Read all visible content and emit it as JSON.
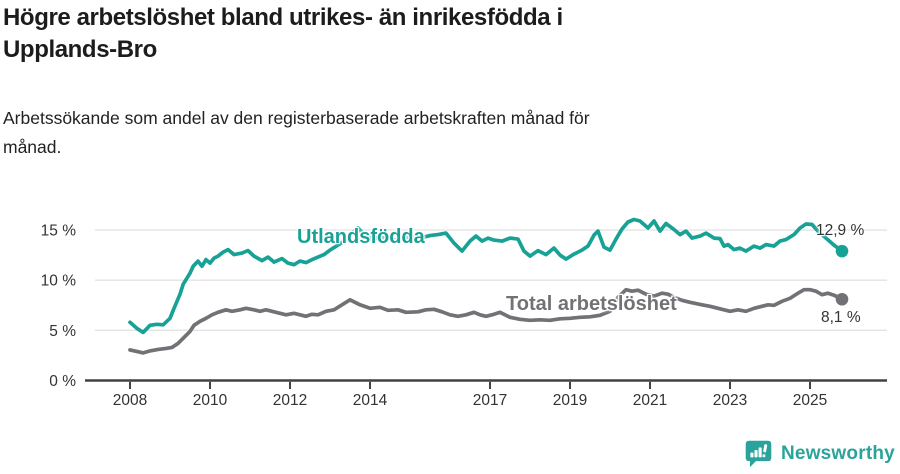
{
  "page": {
    "title": "Högre arbetslöshet bland utrikes- än inrikesfödda i Upplands-Bro",
    "title_lines": [
      "Högre arbetslöshet bland utrikes- än inrikesfödda i",
      "Upplands-Bro"
    ],
    "subtitle": "Arbetssökande som andel av den registerbaserade arbetskraften månad för månad.",
    "subtitle_lines": [
      "Arbetssökande som andel av den registerbaserade arbetskraften månad för",
      "månad."
    ]
  },
  "footer": {
    "brand": "Newsworthy"
  },
  "colors": {
    "foreign_born_line": "#18a296",
    "total_line": "#727176",
    "grid": "#e3e3e3",
    "axis": "#424242",
    "tick_text": "#333333",
    "value_text": "#333333",
    "brand": "#2aa49b"
  },
  "chart_data": {
    "type": "line",
    "title": "Högre arbetslöshet bland utrikes- än inrikesfödda i Upplands-Bro",
    "subtitle": "Arbetssökande som andel av den registerbaserade arbetskraften månad för månad.",
    "unit": "%",
    "grid": true,
    "legend_position": "inline-labels",
    "x_axis": {
      "label": "",
      "range": [
        2008,
        2025.8
      ],
      "tick_values": [
        2008,
        2010,
        2012,
        2014,
        2017,
        2019,
        2021,
        2023,
        2025
      ],
      "tick_labels": [
        "2008",
        "2010",
        "2012",
        "2014",
        "2017",
        "2019",
        "2021",
        "2023",
        "2025"
      ]
    },
    "y_axis": {
      "label": "",
      "range": [
        0,
        16.5
      ],
      "tick_values": [
        0,
        5,
        10,
        15
      ],
      "tick_labels": [
        "0 %",
        "5 %",
        "10 %",
        "15 %"
      ]
    },
    "series": [
      {
        "name": "Utlandsfödda",
        "color": "#18a296",
        "end_label": "12,9 %",
        "end_value": 12.9,
        "points": [
          [
            2008.0,
            5.8
          ],
          [
            2008.17,
            5.2
          ],
          [
            2008.33,
            4.8
          ],
          [
            2008.5,
            5.5
          ],
          [
            2008.67,
            5.6
          ],
          [
            2008.83,
            5.55
          ],
          [
            2009.0,
            6.2
          ],
          [
            2009.08,
            7.0
          ],
          [
            2009.25,
            8.6
          ],
          [
            2009.33,
            9.6
          ],
          [
            2009.5,
            10.7
          ],
          [
            2009.58,
            11.4
          ],
          [
            2009.7,
            11.9
          ],
          [
            2009.8,
            11.4
          ],
          [
            2009.9,
            12.05
          ],
          [
            2010.0,
            11.7
          ],
          [
            2010.1,
            12.2
          ],
          [
            2010.2,
            12.4
          ],
          [
            2010.33,
            12.8
          ],
          [
            2010.45,
            13.05
          ],
          [
            2010.6,
            12.55
          ],
          [
            2010.8,
            12.7
          ],
          [
            2010.95,
            12.95
          ],
          [
            2011.1,
            12.4
          ],
          [
            2011.3,
            11.95
          ],
          [
            2011.45,
            12.3
          ],
          [
            2011.6,
            11.8
          ],
          [
            2011.8,
            12.15
          ],
          [
            2011.95,
            11.7
          ],
          [
            2012.1,
            11.55
          ],
          [
            2012.25,
            11.9
          ],
          [
            2012.4,
            11.75
          ],
          [
            2012.55,
            12.05
          ],
          [
            2012.7,
            12.3
          ],
          [
            2012.85,
            12.55
          ],
          [
            2013.0,
            13.0
          ],
          [
            2013.2,
            13.5
          ],
          [
            2013.35,
            13.9
          ],
          [
            2013.5,
            14.5
          ],
          [
            2013.7,
            15.2
          ],
          [
            2013.85,
            14.55
          ],
          [
            2014.05,
            14.1
          ],
          [
            2014.25,
            14.3
          ],
          [
            2014.45,
            14.15
          ],
          [
            2014.65,
            14.0
          ],
          [
            2014.85,
            14.2
          ],
          [
            2015.05,
            14.3
          ],
          [
            2015.25,
            14.2
          ],
          [
            2015.5,
            14.45
          ],
          [
            2015.7,
            14.55
          ],
          [
            2015.9,
            14.7
          ],
          [
            2016.1,
            13.7
          ],
          [
            2016.3,
            12.9
          ],
          [
            2016.5,
            13.9
          ],
          [
            2016.65,
            14.4
          ],
          [
            2016.8,
            13.9
          ],
          [
            2016.95,
            14.2
          ],
          [
            2017.1,
            14.0
          ],
          [
            2017.3,
            13.9
          ],
          [
            2017.5,
            14.2
          ],
          [
            2017.7,
            14.1
          ],
          [
            2017.85,
            12.9
          ],
          [
            2018.0,
            12.4
          ],
          [
            2018.2,
            12.95
          ],
          [
            2018.4,
            12.55
          ],
          [
            2018.6,
            13.2
          ],
          [
            2018.75,
            12.5
          ],
          [
            2018.9,
            12.1
          ],
          [
            2019.1,
            12.6
          ],
          [
            2019.3,
            13.0
          ],
          [
            2019.45,
            13.4
          ],
          [
            2019.6,
            14.5
          ],
          [
            2019.7,
            14.9
          ],
          [
            2019.85,
            13.3
          ],
          [
            2020.0,
            13.0
          ],
          [
            2020.15,
            14.1
          ],
          [
            2020.3,
            15.1
          ],
          [
            2020.45,
            15.8
          ],
          [
            2020.6,
            16.05
          ],
          [
            2020.75,
            15.9
          ],
          [
            2020.95,
            15.2
          ],
          [
            2021.1,
            15.9
          ],
          [
            2021.25,
            14.9
          ],
          [
            2021.4,
            15.65
          ],
          [
            2021.6,
            15.05
          ],
          [
            2021.75,
            14.55
          ],
          [
            2021.9,
            14.9
          ],
          [
            2022.05,
            14.2
          ],
          [
            2022.25,
            14.4
          ],
          [
            2022.4,
            14.7
          ],
          [
            2022.6,
            14.2
          ],
          [
            2022.75,
            14.15
          ],
          [
            2022.85,
            13.4
          ],
          [
            2022.95,
            13.55
          ],
          [
            2023.1,
            13.05
          ],
          [
            2023.25,
            13.2
          ],
          [
            2023.4,
            12.9
          ],
          [
            2023.6,
            13.4
          ],
          [
            2023.75,
            13.2
          ],
          [
            2023.9,
            13.55
          ],
          [
            2024.1,
            13.4
          ],
          [
            2024.25,
            13.9
          ],
          [
            2024.4,
            14.05
          ],
          [
            2024.6,
            14.55
          ],
          [
            2024.75,
            15.2
          ],
          [
            2024.9,
            15.6
          ],
          [
            2025.05,
            15.55
          ],
          [
            2025.2,
            14.9
          ],
          [
            2025.4,
            14.2
          ],
          [
            2025.6,
            13.5
          ],
          [
            2025.8,
            12.9
          ]
        ]
      },
      {
        "name": "Total arbetslöshet",
        "color": "#727176",
        "end_label": "8,1 %",
        "end_value": 8.1,
        "points": [
          [
            2008.0,
            3.05
          ],
          [
            2008.17,
            2.9
          ],
          [
            2008.33,
            2.75
          ],
          [
            2008.5,
            2.95
          ],
          [
            2008.7,
            3.1
          ],
          [
            2008.9,
            3.2
          ],
          [
            2009.05,
            3.3
          ],
          [
            2009.2,
            3.7
          ],
          [
            2009.35,
            4.3
          ],
          [
            2009.5,
            4.9
          ],
          [
            2009.6,
            5.5
          ],
          [
            2009.75,
            5.9
          ],
          [
            2009.9,
            6.2
          ],
          [
            2010.05,
            6.55
          ],
          [
            2010.2,
            6.8
          ],
          [
            2010.4,
            7.05
          ],
          [
            2010.55,
            6.9
          ],
          [
            2010.75,
            7.05
          ],
          [
            2010.9,
            7.2
          ],
          [
            2011.1,
            7.05
          ],
          [
            2011.25,
            6.9
          ],
          [
            2011.4,
            7.05
          ],
          [
            2011.6,
            6.85
          ],
          [
            2011.75,
            6.7
          ],
          [
            2011.9,
            6.55
          ],
          [
            2012.1,
            6.7
          ],
          [
            2012.25,
            6.55
          ],
          [
            2012.4,
            6.4
          ],
          [
            2012.55,
            6.6
          ],
          [
            2012.7,
            6.55
          ],
          [
            2012.9,
            6.9
          ],
          [
            2013.1,
            7.05
          ],
          [
            2013.3,
            7.55
          ],
          [
            2013.5,
            8.05
          ],
          [
            2013.75,
            7.55
          ],
          [
            2014.0,
            7.2
          ],
          [
            2014.25,
            7.3
          ],
          [
            2014.45,
            7.0
          ],
          [
            2014.7,
            7.05
          ],
          [
            2014.9,
            6.8
          ],
          [
            2015.2,
            6.85
          ],
          [
            2015.4,
            7.05
          ],
          [
            2015.6,
            7.1
          ],
          [
            2015.8,
            6.85
          ],
          [
            2016.0,
            6.55
          ],
          [
            2016.2,
            6.4
          ],
          [
            2016.4,
            6.55
          ],
          [
            2016.6,
            6.8
          ],
          [
            2016.75,
            6.55
          ],
          [
            2016.9,
            6.4
          ],
          [
            2017.1,
            6.6
          ],
          [
            2017.25,
            6.8
          ],
          [
            2017.5,
            6.3
          ],
          [
            2017.75,
            6.1
          ],
          [
            2018.0,
            6.0
          ],
          [
            2018.25,
            6.05
          ],
          [
            2018.5,
            6.0
          ],
          [
            2018.75,
            6.15
          ],
          [
            2019.0,
            6.2
          ],
          [
            2019.25,
            6.3
          ],
          [
            2019.5,
            6.35
          ],
          [
            2019.75,
            6.5
          ],
          [
            2020.0,
            6.9
          ],
          [
            2020.2,
            8.3
          ],
          [
            2020.4,
            9.05
          ],
          [
            2020.55,
            8.9
          ],
          [
            2020.7,
            9.0
          ],
          [
            2020.9,
            8.6
          ],
          [
            2021.1,
            8.4
          ],
          [
            2021.3,
            8.7
          ],
          [
            2021.45,
            8.6
          ],
          [
            2021.6,
            8.3
          ],
          [
            2021.8,
            8.0
          ],
          [
            2022.0,
            7.8
          ],
          [
            2022.3,
            7.55
          ],
          [
            2022.5,
            7.4
          ],
          [
            2022.7,
            7.2
          ],
          [
            2022.85,
            7.05
          ],
          [
            2023.0,
            6.9
          ],
          [
            2023.2,
            7.05
          ],
          [
            2023.4,
            6.9
          ],
          [
            2023.6,
            7.2
          ],
          [
            2023.8,
            7.4
          ],
          [
            2023.95,
            7.55
          ],
          [
            2024.1,
            7.5
          ],
          [
            2024.3,
            7.9
          ],
          [
            2024.5,
            8.2
          ],
          [
            2024.7,
            8.7
          ],
          [
            2024.85,
            9.05
          ],
          [
            2025.0,
            9.05
          ],
          [
            2025.15,
            8.9
          ],
          [
            2025.3,
            8.55
          ],
          [
            2025.45,
            8.7
          ],
          [
            2025.6,
            8.5
          ],
          [
            2025.8,
            8.1
          ]
        ]
      }
    ]
  }
}
